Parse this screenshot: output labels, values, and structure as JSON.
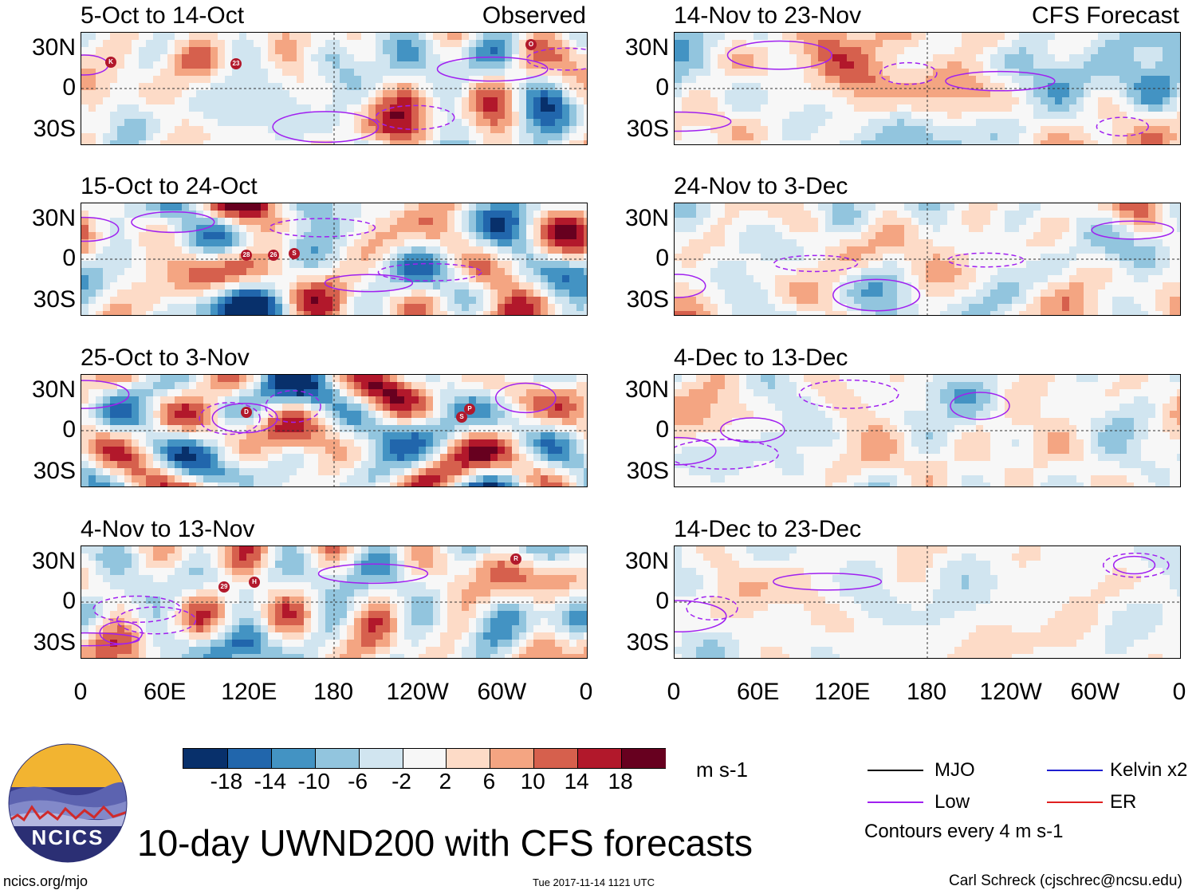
{
  "chart_data": {
    "type": "heatmap",
    "title": "10-day UWND200 with CFS forecasts",
    "variable": "UWND200",
    "units": "m s-1",
    "lat_range": [
      -40,
      40
    ],
    "lon_range": [
      0,
      360
    ],
    "lat_ticks": [
      "30N",
      "0",
      "30S"
    ],
    "lon_ticks": [
      "0",
      "60E",
      "120E",
      "180",
      "120W",
      "60W",
      "0"
    ],
    "observed_label": "Observed",
    "forecast_label": "CFS Forecast",
    "observed_panels": [
      {
        "period": "5-Oct to 14-Oct",
        "storm_markers": [
          "23",
          "K",
          "O"
        ]
      },
      {
        "period": "15-Oct to 24-Oct",
        "storm_markers": [
          "28",
          "26",
          "S"
        ]
      },
      {
        "period": "25-Oct to 3-Nov",
        "storm_markers": [
          "D",
          "P",
          "S"
        ]
      },
      {
        "period": "4-Nov to 13-Nov",
        "storm_markers": [
          "29",
          "H",
          "R"
        ]
      }
    ],
    "forecast_panels": [
      {
        "period": "14-Nov to 23-Nov"
      },
      {
        "period": "24-Nov to 3-Dec"
      },
      {
        "period": "4-Dec to 13-Dec"
      },
      {
        "period": "14-Dec to 23-Dec"
      }
    ],
    "colorbar": {
      "ticks": [
        "-18",
        "-14",
        "-10",
        "-6",
        "-2",
        "2",
        "6",
        "10",
        "14",
        "18"
      ],
      "colors": [
        "#08306b",
        "#2166ac",
        "#4393c3",
        "#92c5de",
        "#d1e5f0",
        "#f7f7f7",
        "#fddbc7",
        "#f4a582",
        "#d6604d",
        "#b2182b",
        "#67001f"
      ]
    },
    "contour_legend": [
      {
        "label": "MJO",
        "color": "#000000"
      },
      {
        "label": "Kelvin x2",
        "color": "#1f1fd0"
      },
      {
        "label": "Low",
        "color": "#a020f0"
      },
      {
        "label": "ER",
        "color": "#e02020"
      }
    ],
    "contour_note": "Contours every 4 m s-1"
  },
  "branding": {
    "logo_text": "NCICS",
    "site": "ncics.org/mjo",
    "timestamp": "Tue 2017-11-14 1121 UTC",
    "author": "Carl Schreck (cjschrec@ncsu.edu)"
  }
}
